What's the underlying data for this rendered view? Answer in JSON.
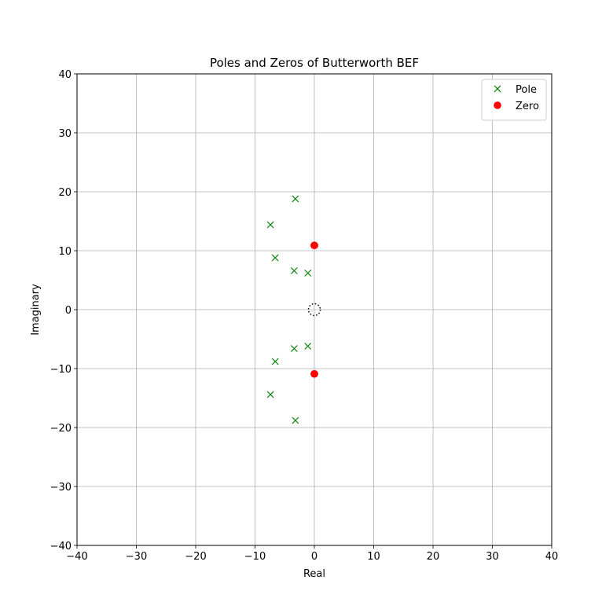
{
  "chart_data": {
    "type": "scatter",
    "title": "Poles and Zeros  of Butterworth BEF",
    "xlabel": "Real",
    "ylabel": "Imaginary",
    "xlim": [
      -40,
      40
    ],
    "ylim": [
      -40,
      40
    ],
    "xticks": [
      -40,
      -30,
      -20,
      -10,
      0,
      10,
      20,
      30,
      40
    ],
    "yticks": [
      -40,
      -30,
      -20,
      -10,
      0,
      10,
      20,
      30,
      40
    ],
    "grid": true,
    "legend_position": "top-right",
    "unit_circle": true,
    "series": [
      {
        "name": "Pole",
        "marker": "x",
        "color": "#008000",
        "points": [
          [
            -3.2,
            18.8
          ],
          [
            -7.4,
            14.4
          ],
          [
            -6.6,
            8.8
          ],
          [
            -3.4,
            6.6
          ],
          [
            -1.1,
            6.2
          ],
          [
            -1.1,
            -6.2
          ],
          [
            -3.4,
            -6.6
          ],
          [
            -6.6,
            -8.8
          ],
          [
            -7.4,
            -14.4
          ],
          [
            -3.2,
            -18.8
          ]
        ]
      },
      {
        "name": "Zero",
        "marker": "o",
        "color": "#ff0000",
        "points": [
          [
            0,
            10.9
          ],
          [
            0,
            10.9
          ],
          [
            0,
            10.9
          ],
          [
            0,
            -10.9
          ],
          [
            0,
            -10.9
          ],
          [
            0,
            -10.9
          ]
        ]
      }
    ]
  }
}
